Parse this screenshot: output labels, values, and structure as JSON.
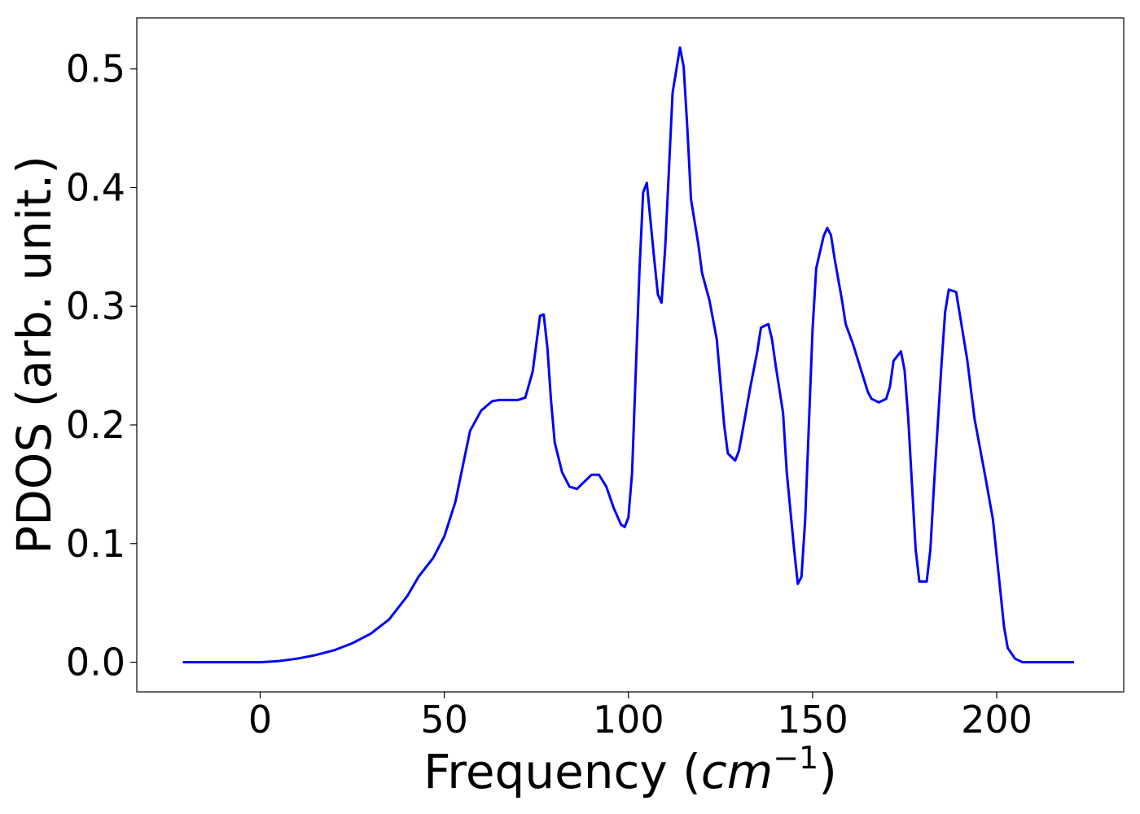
{
  "chart_data": {
    "type": "line",
    "title": "",
    "xlabel": "Frequency (",
    "xlabel_unit": "cm",
    "xlabel_exponent": "−1",
    "xlabel_close": ")",
    "ylabel": "PDOS (arb. unit.)",
    "xlim": [
      -33.5,
      234.5
    ],
    "ylim": [
      -0.025,
      0.543
    ],
    "grid": false,
    "legend": "none",
    "x_ticks": [
      0,
      50,
      100,
      150,
      200
    ],
    "x_tick_labels": [
      "0",
      "50",
      "100",
      "150",
      "200"
    ],
    "y_ticks": [
      0.0,
      0.1,
      0.2,
      0.3,
      0.4,
      0.5
    ],
    "y_tick_labels": [
      "0.0",
      "0.1",
      "0.2",
      "0.3",
      "0.4",
      "0.5"
    ],
    "series": [
      {
        "color": "#0000ff",
        "points": [
          [
            -21,
            0.0
          ],
          [
            0,
            0.0
          ],
          [
            5,
            0.001
          ],
          [
            10,
            0.003
          ],
          [
            15,
            0.006
          ],
          [
            20,
            0.01
          ],
          [
            25,
            0.016
          ],
          [
            30,
            0.024
          ],
          [
            35,
            0.036
          ],
          [
            40,
            0.056
          ],
          [
            43,
            0.072
          ],
          [
            47,
            0.088
          ],
          [
            50,
            0.106
          ],
          [
            53,
            0.135
          ],
          [
            55,
            0.165
          ],
          [
            57,
            0.195
          ],
          [
            60,
            0.212
          ],
          [
            63,
            0.22
          ],
          [
            65,
            0.221
          ],
          [
            70,
            0.221
          ],
          [
            72,
            0.223
          ],
          [
            74,
            0.245
          ],
          [
            76,
            0.292
          ],
          [
            77,
            0.293
          ],
          [
            78,
            0.265
          ],
          [
            79,
            0.22
          ],
          [
            80,
            0.185
          ],
          [
            82,
            0.16
          ],
          [
            84,
            0.148
          ],
          [
            86,
            0.146
          ],
          [
            88,
            0.152
          ],
          [
            90,
            0.158
          ],
          [
            92,
            0.158
          ],
          [
            94,
            0.148
          ],
          [
            96,
            0.13
          ],
          [
            98,
            0.116
          ],
          [
            99,
            0.114
          ],
          [
            100,
            0.122
          ],
          [
            101,
            0.16
          ],
          [
            103,
            0.33
          ],
          [
            104,
            0.396
          ],
          [
            105,
            0.404
          ],
          [
            107,
            0.34
          ],
          [
            108,
            0.31
          ],
          [
            109,
            0.303
          ],
          [
            110,
            0.35
          ],
          [
            112,
            0.48
          ],
          [
            114,
            0.518
          ],
          [
            115,
            0.502
          ],
          [
            116,
            0.45
          ],
          [
            117,
            0.39
          ],
          [
            119,
            0.352
          ],
          [
            120,
            0.328
          ],
          [
            122,
            0.305
          ],
          [
            124,
            0.272
          ],
          [
            126,
            0.2
          ],
          [
            127,
            0.176
          ],
          [
            129,
            0.17
          ],
          [
            130,
            0.178
          ],
          [
            131,
            0.195
          ],
          [
            133,
            0.23
          ],
          [
            135,
            0.262
          ],
          [
            136,
            0.282
          ],
          [
            138,
            0.285
          ],
          [
            139,
            0.272
          ],
          [
            140,
            0.25
          ],
          [
            142,
            0.21
          ],
          [
            143,
            0.16
          ],
          [
            145,
            0.095
          ],
          [
            146,
            0.066
          ],
          [
            147,
            0.072
          ],
          [
            148,
            0.12
          ],
          [
            149,
            0.2
          ],
          [
            150,
            0.28
          ],
          [
            151,
            0.332
          ],
          [
            153,
            0.359
          ],
          [
            154,
            0.366
          ],
          [
            155,
            0.36
          ],
          [
            156,
            0.34
          ],
          [
            158,
            0.305
          ],
          [
            159,
            0.285
          ],
          [
            161,
            0.268
          ],
          [
            163,
            0.248
          ],
          [
            165,
            0.228
          ],
          [
            166,
            0.222
          ],
          [
            168,
            0.219
          ],
          [
            170,
            0.222
          ],
          [
            171,
            0.232
          ],
          [
            172,
            0.254
          ],
          [
            174,
            0.262
          ],
          [
            175,
            0.246
          ],
          [
            176,
            0.205
          ],
          [
            177,
            0.15
          ],
          [
            178,
            0.095
          ],
          [
            179,
            0.068
          ],
          [
            181,
            0.068
          ],
          [
            182,
            0.095
          ],
          [
            183,
            0.15
          ],
          [
            185,
            0.25
          ],
          [
            186,
            0.295
          ],
          [
            187,
            0.314
          ],
          [
            189,
            0.312
          ],
          [
            190,
            0.293
          ],
          [
            192,
            0.255
          ],
          [
            194,
            0.205
          ],
          [
            197,
            0.155
          ],
          [
            199,
            0.12
          ],
          [
            200,
            0.09
          ],
          [
            201,
            0.06
          ],
          [
            202,
            0.03
          ],
          [
            203,
            0.012
          ],
          [
            205,
            0.003
          ],
          [
            207,
            0.0
          ],
          [
            221,
            0.0
          ]
        ]
      }
    ]
  }
}
